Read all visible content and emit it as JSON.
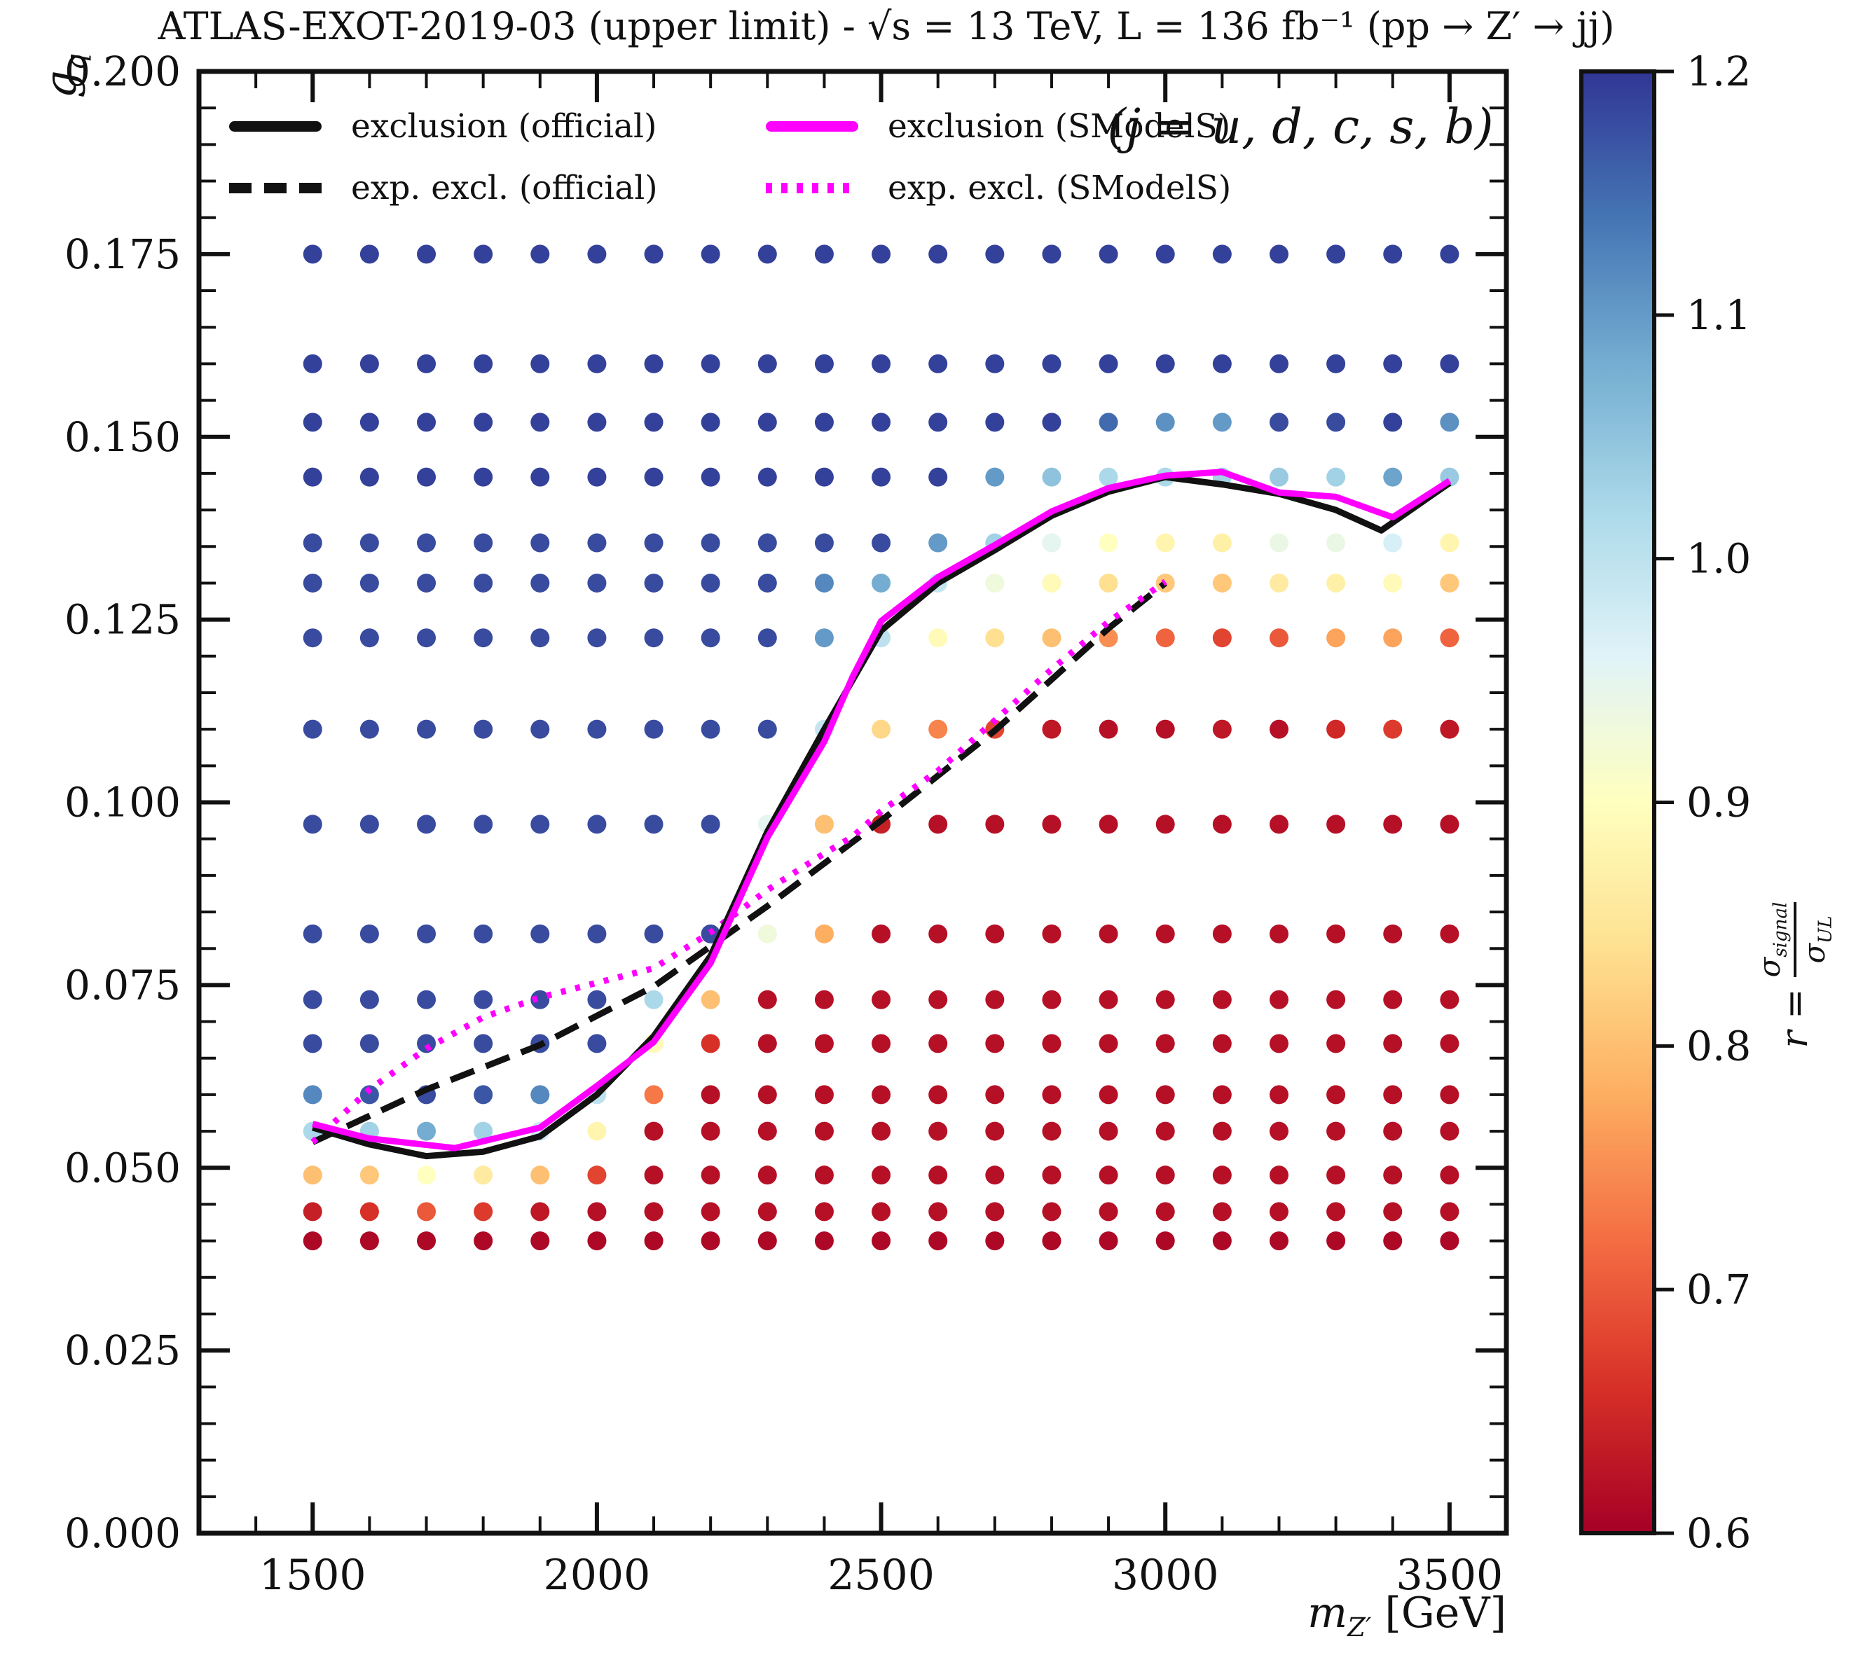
{
  "title": "ATLAS-EXOT-2019-03 (upper limit) - √s = 13 TeV, L = 136 fb⁻¹ (pp → Z′ → jj)",
  "annotation": "(j = u, d, c, s, b)",
  "legend": {
    "items": [
      {
        "label": "exclusion (official)",
        "style": "solid",
        "color": "#111111"
      },
      {
        "label": "exp. excl. (official)",
        "style": "dashed",
        "color": "#111111"
      },
      {
        "label": "exclusion (SModelS)",
        "style": "solid",
        "color": "#ff00ff"
      },
      {
        "label": "exp. excl. (SModelS)",
        "style": "dotted",
        "color": "#ff00ff"
      }
    ]
  },
  "axes": {
    "x_label_var": "m",
    "x_label_sub": "Z′",
    "x_label_unit": " [GeV]",
    "y_label_var": "g",
    "y_label_sub": "q"
  },
  "colorbar": {
    "label_prefix": "r = ",
    "sigma": "σ",
    "numerator_sub": "signal",
    "denominator_sub": "UL",
    "min": 0.6,
    "max": 1.2,
    "tick_labels": [
      "0.6",
      "0.7",
      "0.8",
      "0.9",
      "1.0",
      "1.1",
      "1.2"
    ]
  },
  "chart_data": {
    "type": "scatter",
    "title": "ATLAS-EXOT-2019-03 (upper limit) - √s = 13 TeV, L = 136 fb⁻¹ (pp → Z′ → jj)",
    "xlabel": "m_Z′ [GeV]",
    "ylabel": "g_q",
    "xlim": [
      1300,
      3600
    ],
    "ylim": [
      0.0,
      0.2
    ],
    "grid": false,
    "legend_position": "upper left",
    "x_ticks": [
      1500,
      2000,
      2500,
      3000,
      3500
    ],
    "x_tick_labels": [
      "1500",
      "2000",
      "2500",
      "3000",
      "3500"
    ],
    "x_minor_step": 100,
    "y_ticks": [
      0.0,
      0.025,
      0.05,
      0.075,
      0.1,
      0.125,
      0.15,
      0.175,
      0.2
    ],
    "y_tick_labels": [
      "0.000",
      "0.025",
      "0.050",
      "0.075",
      "0.100",
      "0.125",
      "0.150",
      "0.175",
      "0.200"
    ],
    "y_minor_step": 0.005,
    "colorbar_ticks": [
      0.6,
      0.7,
      0.8,
      0.9,
      1.0,
      1.1,
      1.2
    ],
    "colorbar_tick_labels": [
      "0.6",
      "0.7",
      "0.8",
      "0.9",
      "1.0",
      "1.1",
      "1.2"
    ],
    "colormap": {
      "name": "RdYlBu",
      "vmin": 0.6,
      "vmax": 1.2,
      "anchors": [
        [
          "#a50026",
          0.0
        ],
        [
          "#d73027",
          0.1
        ],
        [
          "#f46d43",
          0.2
        ],
        [
          "#fdae61",
          0.3
        ],
        [
          "#fee090",
          0.4
        ],
        [
          "#ffffbf",
          0.5
        ],
        [
          "#e0f3f8",
          0.6
        ],
        [
          "#abd9e9",
          0.7
        ],
        [
          "#74add1",
          0.8
        ],
        [
          "#4575b4",
          0.9
        ],
        [
          "#313695",
          1.0
        ]
      ]
    },
    "x_values": [
      1500,
      1600,
      1700,
      1800,
      1900,
      2000,
      2100,
      2200,
      2300,
      2400,
      2500,
      2600,
      2700,
      2800,
      2900,
      3000,
      3100,
      3200,
      3300,
      3400,
      3500
    ],
    "scatter_rows": [
      {
        "gq": 0.175,
        "r": [
          1.19,
          1.19,
          1.19,
          1.19,
          1.19,
          1.19,
          1.19,
          1.19,
          1.19,
          1.19,
          1.19,
          1.19,
          1.19,
          1.19,
          1.19,
          1.19,
          1.19,
          1.19,
          1.19,
          1.19,
          1.19
        ]
      },
      {
        "gq": 0.16,
        "r": [
          1.19,
          1.19,
          1.19,
          1.19,
          1.19,
          1.19,
          1.19,
          1.19,
          1.19,
          1.19,
          1.19,
          1.19,
          1.19,
          1.19,
          1.19,
          1.19,
          1.19,
          1.19,
          1.19,
          1.19,
          1.19
        ]
      },
      {
        "gq": 0.152,
        "r": [
          1.19,
          1.19,
          1.19,
          1.19,
          1.19,
          1.19,
          1.19,
          1.19,
          1.19,
          1.19,
          1.19,
          1.19,
          1.19,
          1.19,
          1.15,
          1.11,
          1.1,
          1.18,
          1.18,
          1.19,
          1.11
        ]
      },
      {
        "gq": 0.1445,
        "r": [
          1.19,
          1.19,
          1.19,
          1.19,
          1.19,
          1.19,
          1.19,
          1.19,
          1.19,
          1.19,
          1.19,
          1.19,
          1.1,
          1.05,
          1.02,
          1.02,
          1.03,
          1.04,
          1.03,
          1.09,
          1.04
        ]
      },
      {
        "gq": 0.1355,
        "r": [
          1.18,
          1.18,
          1.18,
          1.18,
          1.18,
          1.18,
          1.18,
          1.18,
          1.18,
          1.18,
          1.18,
          1.1,
          1.03,
          0.95,
          0.9,
          0.88,
          0.87,
          0.94,
          0.94,
          0.97,
          0.88
        ]
      },
      {
        "gq": 0.13,
        "r": [
          1.18,
          1.18,
          1.18,
          1.18,
          1.18,
          1.18,
          1.18,
          1.18,
          1.18,
          1.12,
          1.08,
          0.99,
          0.93,
          0.89,
          0.84,
          0.81,
          0.81,
          0.86,
          0.87,
          0.89,
          0.81
        ]
      },
      {
        "gq": 0.1225,
        "r": [
          1.18,
          1.18,
          1.18,
          1.18,
          1.18,
          1.18,
          1.18,
          1.18,
          1.18,
          1.1,
          1.0,
          0.89,
          0.84,
          0.8,
          0.75,
          0.71,
          0.68,
          0.7,
          0.77,
          0.77,
          0.71
        ]
      },
      {
        "gq": 0.11,
        "r": [
          1.18,
          1.18,
          1.18,
          1.18,
          1.18,
          1.18,
          1.18,
          1.18,
          1.18,
          0.99,
          0.83,
          0.74,
          0.68,
          0.63,
          0.62,
          0.62,
          0.63,
          0.62,
          0.65,
          0.67,
          0.63
        ]
      },
      {
        "gq": 0.097,
        "r": [
          1.18,
          1.18,
          1.18,
          1.18,
          1.18,
          1.18,
          1.18,
          1.18,
          0.95,
          0.8,
          0.64,
          0.62,
          0.62,
          0.62,
          0.62,
          0.62,
          0.62,
          0.62,
          0.62,
          0.62,
          0.62
        ]
      },
      {
        "gq": 0.082,
        "r": [
          1.18,
          1.18,
          1.18,
          1.18,
          1.18,
          1.18,
          1.18,
          1.18,
          0.93,
          0.78,
          0.62,
          0.62,
          0.62,
          0.62,
          0.62,
          0.62,
          0.62,
          0.62,
          0.62,
          0.62,
          0.62
        ]
      },
      {
        "gq": 0.073,
        "r": [
          1.18,
          1.18,
          1.18,
          1.18,
          1.18,
          1.18,
          1.02,
          0.8,
          0.62,
          0.62,
          0.62,
          0.62,
          0.62,
          0.62,
          0.62,
          0.62,
          0.62,
          0.62,
          0.62,
          0.62,
          0.62
        ]
      },
      {
        "gq": 0.067,
        "r": [
          1.18,
          1.18,
          1.18,
          1.18,
          1.18,
          1.18,
          0.89,
          0.66,
          0.62,
          0.62,
          0.62,
          0.62,
          0.62,
          0.62,
          0.62,
          0.62,
          0.62,
          0.62,
          0.62,
          0.62,
          0.62
        ]
      },
      {
        "gq": 0.06,
        "r": [
          1.12,
          1.17,
          1.18,
          1.17,
          1.12,
          1.0,
          0.73,
          0.62,
          0.62,
          0.62,
          0.62,
          0.62,
          0.62,
          0.62,
          0.62,
          0.62,
          0.62,
          0.62,
          0.62,
          0.62,
          0.62
        ]
      },
      {
        "gq": 0.055,
        "r": [
          1.02,
          1.03,
          1.08,
          1.03,
          0.98,
          0.88,
          0.62,
          0.62,
          0.62,
          0.62,
          0.62,
          0.62,
          0.62,
          0.62,
          0.62,
          0.62,
          0.62,
          0.62,
          0.62,
          0.62,
          0.62
        ]
      },
      {
        "gq": 0.049,
        "r": [
          0.8,
          0.81,
          0.9,
          0.86,
          0.8,
          0.68,
          0.62,
          0.62,
          0.62,
          0.62,
          0.62,
          0.62,
          0.62,
          0.62,
          0.62,
          0.62,
          0.62,
          0.62,
          0.62,
          0.62,
          0.62
        ]
      },
      {
        "gq": 0.044,
        "r": [
          0.64,
          0.66,
          0.7,
          0.67,
          0.63,
          0.62,
          0.62,
          0.62,
          0.62,
          0.62,
          0.62,
          0.62,
          0.62,
          0.62,
          0.62,
          0.62,
          0.62,
          0.62,
          0.62,
          0.62,
          0.62
        ]
      },
      {
        "gq": 0.04,
        "r": [
          0.61,
          0.61,
          0.61,
          0.61,
          0.61,
          0.61,
          0.61,
          0.61,
          0.61,
          0.61,
          0.61,
          0.61,
          0.61,
          0.61,
          0.61,
          0.61,
          0.61,
          0.61,
          0.61,
          0.61,
          0.61
        ]
      }
    ],
    "curves": [
      {
        "name": "exp. excl. (official)",
        "color": "#111111",
        "style": "dashed",
        "points": [
          [
            1500,
            0.0535
          ],
          [
            1700,
            0.0607
          ],
          [
            1900,
            0.0668
          ],
          [
            2100,
            0.0748
          ],
          [
            2300,
            0.0858
          ],
          [
            2500,
            0.0975
          ],
          [
            2700,
            0.1098
          ],
          [
            2900,
            0.1238
          ],
          [
            3000,
            0.13
          ]
        ]
      },
      {
        "name": "exp. excl. (SModelS)",
        "color": "#ff00ff",
        "style": "dotted",
        "points": [
          [
            1500,
            0.0535
          ],
          [
            1600,
            0.0607
          ],
          [
            1700,
            0.0663
          ],
          [
            1800,
            0.0706
          ],
          [
            1900,
            0.0733
          ],
          [
            2000,
            0.0753
          ],
          [
            2100,
            0.0773
          ],
          [
            2200,
            0.0822
          ],
          [
            2300,
            0.088
          ],
          [
            2400,
            0.093
          ],
          [
            2450,
            0.0953
          ],
          [
            2500,
            0.0988
          ],
          [
            2600,
            0.1043
          ],
          [
            2700,
            0.1112
          ],
          [
            2800,
            0.1182
          ],
          [
            2900,
            0.1247
          ],
          [
            3000,
            0.1302
          ]
        ]
      },
      {
        "name": "exclusion (official)",
        "color": "#111111",
        "style": "solid",
        "points": [
          [
            1500,
            0.0555
          ],
          [
            1600,
            0.0532
          ],
          [
            1700,
            0.0516
          ],
          [
            1800,
            0.0522
          ],
          [
            1900,
            0.0543
          ],
          [
            2000,
            0.06
          ],
          [
            2100,
            0.068
          ],
          [
            2200,
            0.079
          ],
          [
            2300,
            0.096
          ],
          [
            2400,
            0.11
          ],
          [
            2500,
            0.1235
          ],
          [
            2600,
            0.13
          ],
          [
            2700,
            0.1345
          ],
          [
            2800,
            0.1392
          ],
          [
            2900,
            0.1425
          ],
          [
            3000,
            0.1445
          ],
          [
            3100,
            0.1435
          ],
          [
            3200,
            0.1422
          ],
          [
            3300,
            0.14
          ],
          [
            3380,
            0.1372
          ],
          [
            3500,
            0.1437
          ]
        ]
      },
      {
        "name": "exclusion (SModelS)",
        "color": "#ff00ff",
        "style": "solid",
        "points": [
          [
            1500,
            0.056
          ],
          [
            1600,
            0.054
          ],
          [
            1750,
            0.0527
          ],
          [
            1900,
            0.0555
          ],
          [
            2000,
            0.0612
          ],
          [
            2100,
            0.0672
          ],
          [
            2200,
            0.078
          ],
          [
            2300,
            0.0952
          ],
          [
            2400,
            0.1083
          ],
          [
            2450,
            0.1172
          ],
          [
            2500,
            0.1248
          ],
          [
            2600,
            0.1308
          ],
          [
            2700,
            0.1352
          ],
          [
            2800,
            0.1398
          ],
          [
            2900,
            0.143
          ],
          [
            3000,
            0.1447
          ],
          [
            3100,
            0.1452
          ],
          [
            3200,
            0.1424
          ],
          [
            3300,
            0.1418
          ],
          [
            3400,
            0.139
          ],
          [
            3500,
            0.144
          ]
        ]
      }
    ]
  }
}
